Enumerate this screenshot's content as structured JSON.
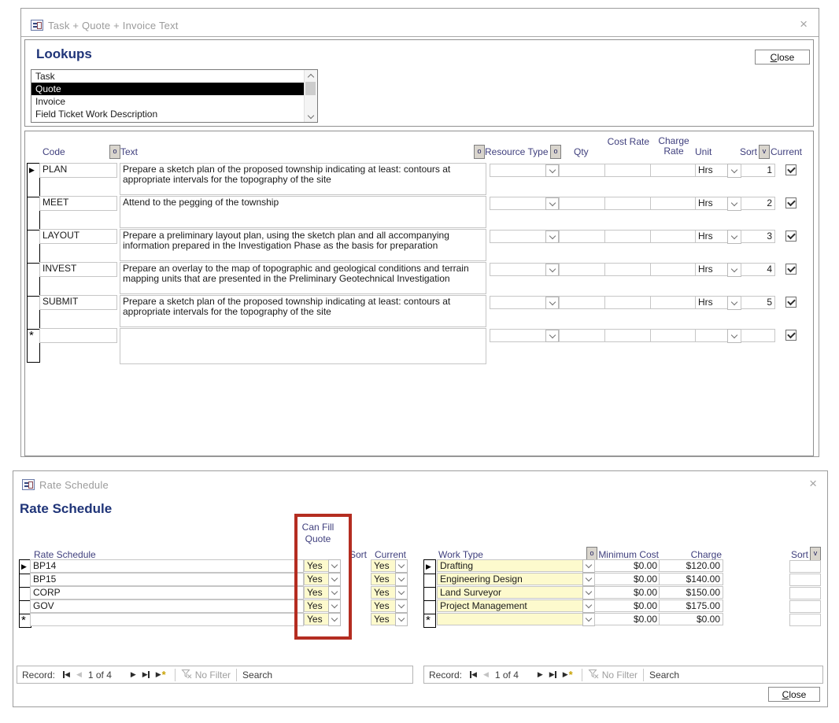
{
  "colors": {
    "heading_navy": "#1f3478",
    "header_label_blue": "#3f3f7d",
    "selection_black": "#000000",
    "combo_yellow": "#fdfacd",
    "annotation_red": "#b42d21",
    "title_gray": "#9b9b9b"
  },
  "top_window": {
    "title": "Task + Quote + Invoice Text",
    "close_x": "×",
    "heading": "Lookups",
    "close_button": "Close",
    "lookups": {
      "items": [
        "Task",
        "Quote",
        "Invoice",
        "Field Ticket Work Description"
      ],
      "selected_index": 1
    },
    "grid": {
      "headers": {
        "code": "Code",
        "text": "Text",
        "resource_type": "Resource Type",
        "qty": "Qty",
        "cost_rate": "Cost Rate",
        "charge_rate": "Charge Rate",
        "unit": "Unit",
        "sort": "Sort",
        "current": "Current",
        "builder_button": "o",
        "sort_button": "v"
      },
      "rows": [
        {
          "code": "PLAN",
          "text": "Prepare a sketch plan of the proposed township indicating at least: contours at appropriate intervals for the topography of the site",
          "resource_type": "",
          "qty": "",
          "cost_rate": "",
          "charge_rate": "",
          "unit": "Hrs",
          "sort": "1",
          "current": true,
          "is_new": false
        },
        {
          "code": "MEET",
          "text": "Attend to the pegging of the township",
          "resource_type": "",
          "qty": "",
          "cost_rate": "",
          "charge_rate": "",
          "unit": "Hrs",
          "sort": "2",
          "current": true,
          "is_new": false
        },
        {
          "code": "LAYOUT",
          "text": "Prepare a preliminary layout plan, using the sketch plan and all accompanying information prepared in the Investigation Phase as the basis for preparation",
          "resource_type": "",
          "qty": "",
          "cost_rate": "",
          "charge_rate": "",
          "unit": "Hrs",
          "sort": "3",
          "current": true,
          "is_new": false
        },
        {
          "code": "INVEST",
          "text": "Prepare an overlay to the map of topographic and geological conditions and terrain mapping units that are presented in the Preliminary Geotechnical Investigation",
          "resource_type": "",
          "qty": "",
          "cost_rate": "",
          "charge_rate": "",
          "unit": "Hrs",
          "sort": "4",
          "current": true,
          "is_new": false
        },
        {
          "code": "SUBMIT",
          "text": "Prepare a sketch plan of the proposed township indicating at least: contours at appropriate intervals for the topography of the site",
          "resource_type": "",
          "qty": "",
          "cost_rate": "",
          "charge_rate": "",
          "unit": "Hrs",
          "sort": "5",
          "current": true,
          "is_new": false
        },
        {
          "code": "",
          "text": "",
          "resource_type": "",
          "qty": "",
          "cost_rate": "",
          "charge_rate": "",
          "unit": "",
          "sort": "",
          "current": true,
          "is_new": true
        }
      ]
    }
  },
  "bottom_window": {
    "title": "Rate Schedule",
    "close_x": "×",
    "heading": "Rate Schedule",
    "close_button": "Close",
    "rate_table": {
      "headers": {
        "rate_schedule": "Rate Schedule",
        "can_fill_quote": "Can Fill Quote",
        "sort": "Sort",
        "current": "Current"
      },
      "rows": [
        {
          "rate_schedule": "BP14",
          "can_fill_quote": "Yes",
          "sort": "",
          "current": "Yes",
          "is_new": false
        },
        {
          "rate_schedule": "BP15",
          "can_fill_quote": "Yes",
          "sort": "",
          "current": "Yes",
          "is_new": false
        },
        {
          "rate_schedule": "CORP",
          "can_fill_quote": "Yes",
          "sort": "",
          "current": "Yes",
          "is_new": false
        },
        {
          "rate_schedule": "GOV",
          "can_fill_quote": "Yes",
          "sort": "",
          "current": "Yes",
          "is_new": false
        },
        {
          "rate_schedule": "",
          "can_fill_quote": "Yes",
          "sort": "",
          "current": "Yes",
          "is_new": true
        }
      ]
    },
    "work_table": {
      "headers": {
        "work_type": "Work Type",
        "minimum_cost": "Minimum Cost",
        "charge": "Charge",
        "sort": "Sort",
        "builder_button": "o",
        "sort_button": "v"
      },
      "rows": [
        {
          "work_type": "Drafting",
          "minimum_cost": "$0.00",
          "charge": "$120.00",
          "sort": "",
          "is_new": false
        },
        {
          "work_type": "Engineering Design",
          "minimum_cost": "$0.00",
          "charge": "$140.00",
          "sort": "",
          "is_new": false
        },
        {
          "work_type": "Land Surveyor",
          "minimum_cost": "$0.00",
          "charge": "$150.00",
          "sort": "",
          "is_new": false
        },
        {
          "work_type": "Project Management",
          "minimum_cost": "$0.00",
          "charge": "$175.00",
          "sort": "",
          "is_new": false
        },
        {
          "work_type": "",
          "minimum_cost": "$0.00",
          "charge": "$0.00",
          "sort": "",
          "is_new": true
        }
      ]
    },
    "record_nav": {
      "label": "Record:",
      "position": "1 of 4",
      "no_filter": "No Filter",
      "search": "Search"
    }
  }
}
